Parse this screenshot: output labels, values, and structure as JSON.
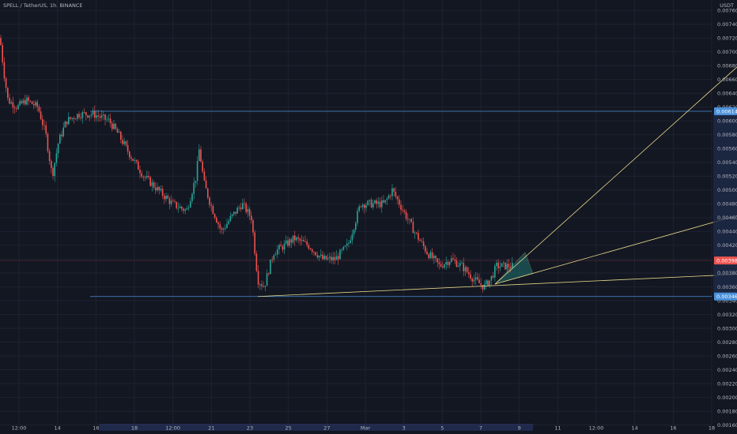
{
  "header": {
    "symbol": "SPELL / TetherUS, 1h, BINANCE",
    "currency": "USDT"
  },
  "colors": {
    "background": "#131722",
    "grid": "#1f2230",
    "up": "#26a69a",
    "down": "#ef5350",
    "trend": "#e8d98a",
    "hline": "#4a90d9",
    "price_line": "#ef5350"
  },
  "chart_data": {
    "type": "candlestick",
    "title": "SPELL / TetherUS, 1h, BINANCE",
    "ylabel": "USDT",
    "ylim": [
      0.00147,
      0.00775
    ],
    "y_ticks": [
      "0.00760",
      "0.00740",
      "0.00720",
      "0.00700",
      "0.00680",
      "0.00660",
      "0.00640",
      "0.00620",
      "0.00600",
      "0.00580",
      "0.00560",
      "0.00540",
      "0.00520",
      "0.00500",
      "0.00480",
      "0.00460",
      "0.00440",
      "0.00420",
      "0.00400",
      "0.00380",
      "0.00360",
      "0.00340",
      "0.00320",
      "0.00300",
      "0.00280",
      "0.00260",
      "0.00240",
      "0.00220",
      "0.00200",
      "0.00180",
      "0.00160"
    ],
    "x_ticks": [
      "12:00",
      "14",
      "16",
      "18",
      "12:00",
      "21",
      "23",
      "25",
      "27",
      "Mar",
      "3",
      "5",
      "7",
      "9",
      "11",
      "12:00",
      "14",
      "16",
      "18"
    ],
    "price_tags": [
      {
        "label": "0.00614",
        "value": 0.00614,
        "color": "#4a90d9"
      },
      {
        "label": "0.00398",
        "value": 0.00398,
        "color": "#ef5350"
      },
      {
        "label": "0.00346",
        "value": 0.00346,
        "color": "#4a90d9"
      }
    ],
    "horizontal_lines": [
      {
        "value": 0.00614,
        "color": "#4a90d9"
      },
      {
        "value": 0.00346,
        "color": "#4a90d9"
      }
    ],
    "price_line": 0.00398,
    "series": [
      {
        "anchors": [
          [
            0,
            0.0072
          ],
          [
            5,
            0.0067
          ],
          [
            10,
            0.0063
          ],
          [
            22,
            0.0062
          ],
          [
            33,
            0.0063
          ],
          [
            48,
            0.0062
          ],
          [
            58,
            0.0058
          ],
          [
            66,
            0.0052
          ],
          [
            74,
            0.0057
          ],
          [
            84,
            0.006
          ],
          [
            100,
            0.0061
          ],
          [
            118,
            0.0061
          ],
          [
            138,
            0.006
          ],
          [
            150,
            0.0058
          ],
          [
            165,
            0.0055
          ],
          [
            182,
            0.0052
          ],
          [
            200,
            0.005
          ],
          [
            218,
            0.0048
          ],
          [
            236,
            0.0047
          ],
          [
            248,
            0.0052
          ],
          [
            252,
            0.0056
          ],
          [
            258,
            0.0051
          ],
          [
            266,
            0.0048
          ],
          [
            280,
            0.0044
          ],
          [
            292,
            0.0046
          ],
          [
            306,
            0.0048
          ],
          [
            318,
            0.0046
          ],
          [
            326,
            0.0037
          ],
          [
            334,
            0.0036
          ],
          [
            346,
            0.0041
          ],
          [
            360,
            0.0042
          ],
          [
            372,
            0.0043
          ],
          [
            390,
            0.0042
          ],
          [
            408,
            0.004
          ],
          [
            424,
            0.004
          ],
          [
            440,
            0.0042
          ],
          [
            456,
            0.0048
          ],
          [
            470,
            0.0048
          ],
          [
            486,
            0.0048
          ],
          [
            496,
            0.005
          ],
          [
            510,
            0.0047
          ],
          [
            524,
            0.0044
          ],
          [
            540,
            0.0041
          ],
          [
            556,
            0.0039
          ],
          [
            570,
            0.004
          ],
          [
            584,
            0.0039
          ],
          [
            600,
            0.0037
          ],
          [
            612,
            0.0036
          ],
          [
            620,
            0.0037
          ],
          [
            628,
            0.0039
          ],
          [
            640,
            0.0039
          ],
          [
            650,
            0.0039
          ]
        ]
      }
    ],
    "trend_lines": [
      {
        "from": [
          326,
          0.00346
        ],
        "to": [
          932,
          0.00378
        ]
      },
      {
        "from": [
          626,
          0.00364
        ],
        "to": [
          932,
          0.00463
        ]
      },
      {
        "from": [
          626,
          0.00364
        ],
        "to": [
          932,
          0.00678
        ]
      }
    ],
    "fan_triangle": [
      [
        626,
        0.00364
      ],
      [
        664,
        0.0041
      ],
      [
        674,
        0.00379
      ]
    ]
  }
}
